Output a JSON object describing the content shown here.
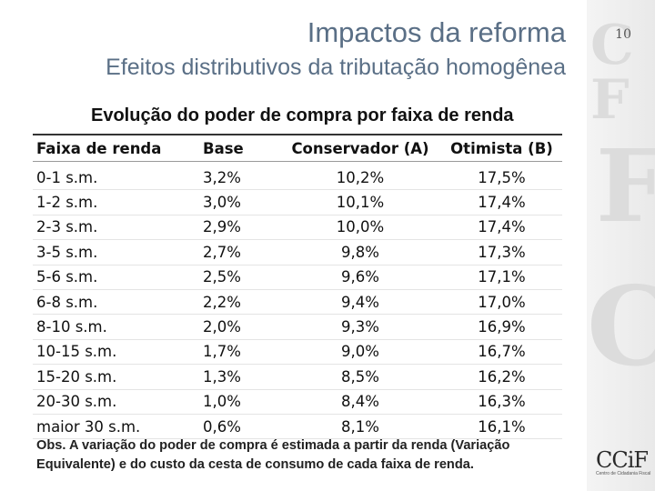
{
  "header": {
    "title": "Impactos da reforma",
    "subtitle": "Efeitos distributivos da tributação homogênea",
    "slide_number": "10"
  },
  "table": {
    "heading": "Evolução do poder de compra por faixa de renda",
    "columns": [
      "Faixa de renda",
      "Base",
      "Conservador  (A)",
      "Otimista (B)"
    ],
    "rows": [
      [
        "0-1 s.m.",
        "3,2%",
        "10,2%",
        "17,5%"
      ],
      [
        "1-2 s.m.",
        "3,0%",
        "10,1%",
        "17,4%"
      ],
      [
        "2-3 s.m.",
        "2,9%",
        "10,0%",
        "17,4%"
      ],
      [
        "3-5 s.m.",
        "2,7%",
        "9,8%",
        "17,3%"
      ],
      [
        "5-6 s.m.",
        "2,5%",
        "9,6%",
        "17,1%"
      ],
      [
        "6-8 s.m.",
        "2,2%",
        "9,4%",
        "17,0%"
      ],
      [
        "8-10 s.m.",
        "2,0%",
        "9,3%",
        "16,9%"
      ],
      [
        "10-15 s.m.",
        "1,7%",
        "9,0%",
        "16,7%"
      ],
      [
        "15-20 s.m.",
        "1,3%",
        "8,5%",
        "16,2%"
      ],
      [
        "20-30 s.m.",
        "1,0%",
        "8,4%",
        "16,3%"
      ],
      [
        "maior 30 s.m.",
        "0,6%",
        "8,1%",
        "16,1%"
      ]
    ],
    "note": "Obs. A variação do poder de compra é estimada a partir da renda (Variação Equivalente) e do custo da cesta de consumo de cada faixa de renda."
  },
  "branding": {
    "logo": "CCiF",
    "tagline": "Centro de Cidadania Fiscal"
  }
}
